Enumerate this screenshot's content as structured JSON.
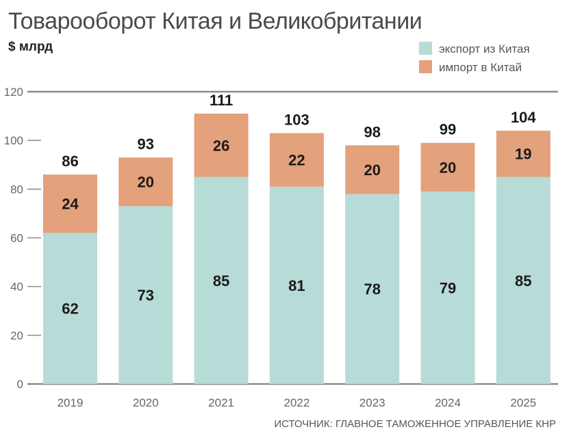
{
  "chart_data": {
    "type": "bar",
    "stacked": true,
    "title": "Товарооборот Китая и Великобритании",
    "ylabel": "$ млрд",
    "xlabel": "",
    "categories": [
      "2019",
      "2020",
      "2021",
      "2022",
      "2023",
      "2024",
      "2025"
    ],
    "series": [
      {
        "name": "экспорт из Китая",
        "color": "#b7dbd6",
        "values": [
          62,
          73,
          85,
          81,
          78,
          79,
          85
        ]
      },
      {
        "name": "импорт в Китай",
        "color": "#e3a17c",
        "values": [
          24,
          20,
          26,
          22,
          20,
          20,
          19
        ]
      }
    ],
    "totals": [
      86,
      93,
      111,
      103,
      98,
      99,
      104
    ],
    "ylim": [
      0,
      120
    ],
    "yticks": [
      0,
      20,
      40,
      60,
      80,
      100,
      120
    ],
    "grid": false,
    "legend_position": "top-right",
    "source": "ИСТОЧНИК: ГЛАВНОЕ ТАМОЖЕННОЕ УПРАВЛЕНИЕ КНР"
  }
}
